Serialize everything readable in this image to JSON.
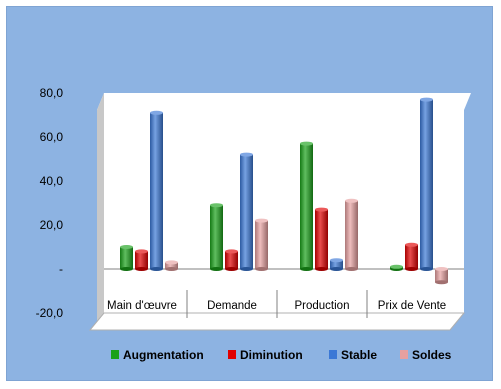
{
  "chart_data": {
    "type": "bar",
    "categories": [
      "Main d'œuvre",
      "Demande",
      "Production",
      "Prix de Vente"
    ],
    "series": [
      {
        "name": "Augmentation",
        "color": "#1aa11a",
        "values": [
          10.0,
          29.0,
          57.0,
          1.0
        ]
      },
      {
        "name": "Diminution",
        "color": "#e00000",
        "values": [
          8.0,
          8.0,
          27.0,
          11.0
        ]
      },
      {
        "name": "Stable",
        "color": "#3b78d6",
        "values": [
          71.0,
          52.0,
          4.0,
          77.0
        ]
      },
      {
        "name": "Soldes",
        "color": "#e6a0a0",
        "values": [
          3.0,
          22.0,
          31.0,
          -6.0
        ]
      }
    ],
    "ylim": [
      -20,
      80
    ],
    "yticks": [
      {
        "value": 80,
        "label": "80,0"
      },
      {
        "value": 60,
        "label": "60,0"
      },
      {
        "value": 40,
        "label": "40,0"
      },
      {
        "value": 20,
        "label": "20,0"
      },
      {
        "value": 0,
        "label": "-"
      },
      {
        "value": -20,
        "label": "-20,0"
      }
    ],
    "grid": false,
    "legend": "bottom",
    "background": "#8db3e2"
  }
}
